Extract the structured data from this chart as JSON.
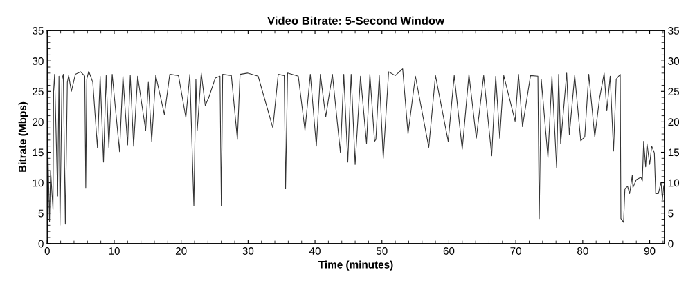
{
  "chart_data": {
    "type": "line",
    "title": "Video Bitrate: 5-Second Window",
    "xlabel": "Time (minutes)",
    "ylabel": "Bitrate (Mbps)",
    "xlim": [
      0,
      92.2
    ],
    "xticks": [
      0,
      10,
      20,
      30,
      40,
      50,
      60,
      70,
      80,
      90
    ],
    "ylim": [
      0,
      35
    ],
    "yticks": [
      0,
      5,
      10,
      15,
      20,
      25,
      30,
      35
    ],
    "y2lim": [
      0,
      35
    ],
    "y2ticks": [
      0,
      5,
      10,
      15,
      20,
      25,
      30,
      35
    ],
    "grid": false,
    "marker": "none",
    "line_style": "solid",
    "series": [
      {
        "color": "#333333",
        "x": [
          0.0,
          0.34,
          0.5,
          0.86,
          0.95,
          1.1,
          1.55,
          1.75,
          1.9,
          2.2,
          2.4,
          2.7,
          3.0,
          3.2,
          3.6,
          4.2,
          5.0,
          5.6,
          5.75,
          5.9,
          6.2,
          6.8,
          7.5,
          7.9,
          8.4,
          8.8,
          9.2,
          9.7,
          10.8,
          11.3,
          12.0,
          12.4,
          12.9,
          13.5,
          14.7,
          15.1,
          15.6,
          16.2,
          17.5,
          18.3,
          19.6,
          20.7,
          21.3,
          21.9,
          22.2,
          22.4,
          23.0,
          23.6,
          24.1,
          25.1,
          25.8,
          26.0,
          26.2,
          27.5,
          28.4,
          28.8,
          29.9,
          31.5,
          33.7,
          34.5,
          35.4,
          35.6,
          35.9,
          37.5,
          38.5,
          39.3,
          40.2,
          40.8,
          41.6,
          42.6,
          43.8,
          44.3,
          44.9,
          45.4,
          46.0,
          46.8,
          47.7,
          48.2,
          48.9,
          49.1,
          49.6,
          50.2,
          51.0,
          52.0,
          53.1,
          53.9,
          55.0,
          57.0,
          58.0,
          59.9,
          60.8,
          62.0,
          63.0,
          64.1,
          65.2,
          66.4,
          67.0,
          67.6,
          68.2,
          69.9,
          70.4,
          71.0,
          72.2,
          73.3,
          73.5,
          73.8,
          74.8,
          75.4,
          76.1,
          76.4,
          76.7,
          77.6,
          78.0,
          78.8,
          79.7,
          80.3,
          80.9,
          81.8,
          82.5,
          83.2,
          83.6,
          84.1,
          84.6,
          85.0,
          85.6,
          85.7,
          86.1,
          86.3,
          86.7,
          87.0,
          87.4,
          87.5,
          88.0,
          88.7,
          88.9,
          89.1,
          89.4,
          89.6,
          90.0,
          90.3,
          90.7,
          90.9,
          91.3,
          91.7,
          91.9,
          92.1
        ],
        "values": [
          20,
          3.6,
          12,
          5.6,
          25,
          27.8,
          7.8,
          27.5,
          3.0,
          27.0,
          27.8,
          3.2,
          26.5,
          27.6,
          25,
          27.8,
          28.2,
          27.5,
          9.2,
          27.0,
          28.3,
          26.5,
          15.7,
          27.5,
          13.4,
          27.6,
          15.8,
          27.8,
          15.1,
          27.5,
          16.2,
          27.6,
          16.0,
          27.5,
          18.6,
          26.5,
          16.8,
          27.6,
          21.2,
          27.8,
          27.6,
          20.7,
          27.8,
          6.2,
          27.0,
          18.6,
          28.0,
          22.7,
          23.9,
          27.2,
          27.5,
          6.2,
          27.8,
          27.6,
          17.1,
          27.8,
          28.0,
          27.5,
          19.0,
          27.8,
          27.6,
          9.0,
          28.0,
          27.5,
          18.6,
          27.8,
          16.0,
          27.8,
          20.8,
          27.8,
          14.9,
          27.8,
          13.4,
          27.8,
          13.0,
          27.5,
          16.4,
          27.8,
          16.8,
          17.1,
          27.6,
          14.0,
          28.2,
          27.6,
          28.7,
          18.0,
          27.5,
          15.8,
          27.6,
          16.8,
          27.6,
          15.5,
          27.8,
          17.3,
          27.6,
          14.4,
          27.5,
          17.3,
          27.6,
          20.1,
          27.8,
          19.2,
          27.6,
          27.5,
          4.1,
          27.0,
          14.1,
          27.5,
          12.4,
          27.8,
          16.4,
          28.0,
          17.9,
          27.6,
          16.9,
          17.5,
          27.8,
          17.5,
          23.8,
          28.0,
          21.8,
          27.5,
          15.2,
          27.0,
          27.8,
          4.1,
          3.5,
          9.0,
          9.4,
          8.2,
          11.2,
          9.2,
          10.5,
          10.9,
          10.3,
          16.8,
          12.6,
          16.4,
          13.0,
          16.0,
          14.9,
          8.2,
          8.2,
          10.1,
          7.2,
          9.5
        ]
      }
    ]
  }
}
